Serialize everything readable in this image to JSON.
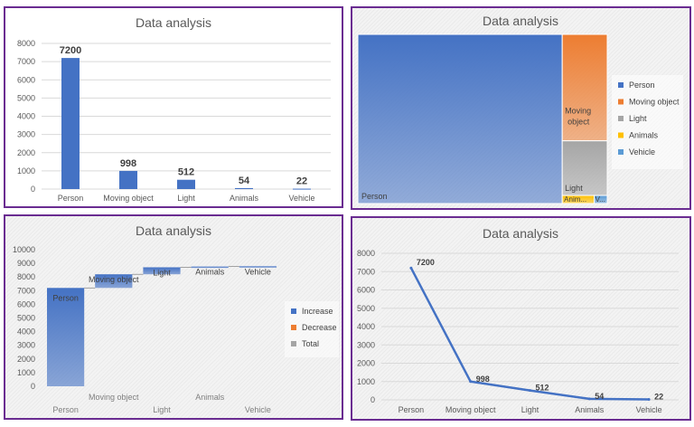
{
  "chart_data": [
    {
      "type": "bar",
      "title": "Data analysis",
      "categories": [
        "Person",
        "Moving object",
        "Light",
        "Animals",
        "Vehicle"
      ],
      "values": [
        7200,
        998,
        512,
        54,
        22
      ],
      "ylim": [
        0,
        8000
      ],
      "yticks": [
        "0",
        "1000",
        "2000",
        "3000",
        "4000",
        "5000",
        "6000",
        "7000",
        "8000"
      ],
      "grid": true,
      "colors": {
        "bar": "#4472c4"
      }
    },
    {
      "type": "treemap",
      "title": "Data analysis",
      "categories": [
        "Person",
        "Moving object",
        "Light",
        "Animals",
        "Vehicle"
      ],
      "values": [
        7200,
        998,
        512,
        54,
        22
      ],
      "tile_labels": [
        "Person",
        "Moving object",
        "Light",
        "Anim...",
        "V..."
      ],
      "legend": [
        "Person",
        "Moving object",
        "Light",
        "Animals",
        "Vehicle"
      ],
      "legend_position": "right",
      "colors": [
        "#4472c4",
        "#ed7d31",
        "#a5a5a5",
        "#ffc000",
        "#5b9bd5"
      ]
    },
    {
      "type": "waterfall",
      "title": "Data analysis",
      "categories": [
        "Person",
        "Moving object",
        "Light",
        "Animals",
        "Vehicle"
      ],
      "values": [
        7200,
        998,
        512,
        54,
        22
      ],
      "ylim": [
        0,
        10000
      ],
      "yticks": [
        "0",
        "1000",
        "2000",
        "3000",
        "4000",
        "5000",
        "6000",
        "7000",
        "8000",
        "9000",
        "10000"
      ],
      "legend": [
        "Increase",
        "Decrease",
        "Total"
      ],
      "legend_position": "right",
      "colors": {
        "increase": "#4472c4",
        "decrease": "#ed7d31",
        "total": "#a5a5a5"
      }
    },
    {
      "type": "line",
      "title": "Data analysis",
      "categories": [
        "Person",
        "Moving object",
        "Light",
        "Animals",
        "Vehicle"
      ],
      "values": [
        7200,
        998,
        512,
        54,
        22
      ],
      "ylim": [
        0,
        8000
      ],
      "yticks": [
        "0",
        "1000",
        "2000",
        "3000",
        "4000",
        "5000",
        "6000",
        "7000",
        "8000"
      ],
      "grid": true,
      "colors": {
        "line": "#4472c4"
      }
    }
  ]
}
